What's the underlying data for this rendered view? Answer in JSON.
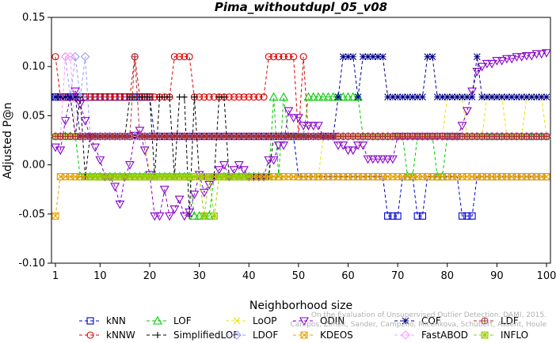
{
  "chart_data": {
    "type": "line",
    "title": "Pima_withoutdupl_05_v08",
    "xlabel": "Neighborhood size",
    "ylabel": "Adjusted P@n",
    "xlim": [
      1,
      100
    ],
    "ylim": [
      -0.1,
      0.15
    ],
    "x_ticks": [
      "1",
      "10",
      "20",
      "30",
      "40",
      "50",
      "60",
      "70",
      "80",
      "90",
      "100"
    ],
    "y_ticks": [
      "-0.10",
      "-0.05",
      "0.00",
      "0.05",
      "0.10",
      "0.15"
    ],
    "grid": false,
    "legend_position": "bottom",
    "watermark": [
      "Campos, Zimek, Sander, Campello, Micenkova, Schubert, Assent, Houle",
      "On the Evaluation of Unsupervised Outlier Detection. DAMI, 2015."
    ],
    "series": [
      {
        "name": "kNN",
        "color": "#0000cc",
        "marker": "square",
        "points": [
          [
            1,
            0.069
          ],
          [
            10,
            0.069
          ],
          [
            20,
            0.069
          ],
          [
            21,
            0.029
          ],
          [
            30,
            0.029
          ],
          [
            40,
            0.029
          ],
          [
            49,
            0.029
          ],
          [
            50,
            -0.012
          ],
          [
            60,
            -0.012
          ],
          [
            67,
            -0.012
          ],
          [
            68,
            -0.052
          ],
          [
            70,
            -0.052
          ],
          [
            71,
            -0.012
          ],
          [
            73,
            -0.012
          ],
          [
            74,
            -0.052
          ],
          [
            75,
            -0.052
          ],
          [
            76,
            -0.012
          ],
          [
            82,
            -0.012
          ],
          [
            83,
            -0.052
          ],
          [
            85,
            -0.052
          ],
          [
            86,
            -0.012
          ],
          [
            100,
            -0.012
          ]
        ]
      },
      {
        "name": "kNNW",
        "color": "#dd0000",
        "marker": "circle",
        "points": [
          [
            1,
            0.11
          ],
          [
            2,
            0.069
          ],
          [
            10,
            0.069
          ],
          [
            16,
            0.069
          ],
          [
            17,
            0.11
          ],
          [
            18,
            0.069
          ],
          [
            24,
            0.069
          ],
          [
            25,
            0.11
          ],
          [
            28,
            0.11
          ],
          [
            29,
            0.069
          ],
          [
            43,
            0.069
          ],
          [
            44,
            0.11
          ],
          [
            49,
            0.11
          ],
          [
            50,
            0.029
          ],
          [
            51,
            0.11
          ],
          [
            52,
            0.029
          ],
          [
            60,
            0.029
          ],
          [
            70,
            0.029
          ],
          [
            80,
            0.029
          ],
          [
            90,
            0.029
          ],
          [
            100,
            0.029
          ]
        ]
      },
      {
        "name": "LOF",
        "color": "#00cc00",
        "marker": "triangle-up",
        "points": [
          [
            1,
            0.029
          ],
          [
            5,
            0.029
          ],
          [
            6,
            -0.012
          ],
          [
            10,
            -0.012
          ],
          [
            20,
            -0.012
          ],
          [
            28,
            -0.012
          ],
          [
            29,
            -0.052
          ],
          [
            32,
            -0.052
          ],
          [
            33,
            -0.012
          ],
          [
            44,
            -0.012
          ],
          [
            45,
            0.069
          ],
          [
            46,
            -0.012
          ],
          [
            47,
            0.069
          ],
          [
            48,
            0.029
          ],
          [
            52,
            0.069
          ],
          [
            62,
            0.069
          ],
          [
            63,
            0.029
          ],
          [
            70,
            0.029
          ],
          [
            72,
            -0.012
          ],
          [
            74,
            0.029
          ],
          [
            78,
            -0.012
          ],
          [
            80,
            0.029
          ],
          [
            100,
            0.029
          ]
        ]
      },
      {
        "name": "SimplifiedLOF",
        "color": "#000000",
        "marker": "plus",
        "points": [
          [
            4,
            0.069
          ],
          [
            5,
            0.029
          ],
          [
            6,
            0.069
          ],
          [
            7,
            -0.012
          ],
          [
            8,
            0.029
          ],
          [
            15,
            0.029
          ],
          [
            16,
            0.069
          ],
          [
            20,
            0.069
          ],
          [
            21,
            -0.012
          ],
          [
            22,
            0.069
          ],
          [
            25,
            -0.012
          ],
          [
            26,
            0.069
          ],
          [
            28,
            -0.052
          ],
          [
            29,
            0.069
          ],
          [
            30,
            -0.012
          ],
          [
            34,
            0.069
          ],
          [
            36,
            -0.012
          ],
          [
            40,
            -0.012
          ],
          [
            45,
            0.029
          ],
          [
            52,
            0.029
          ],
          [
            70,
            0.029
          ],
          [
            100,
            0.029
          ]
        ]
      },
      {
        "name": "LoOP",
        "color": "#e6e600",
        "marker": "x",
        "points": [
          [
            1,
            0.029
          ],
          [
            10,
            0.029
          ],
          [
            20,
            -0.012
          ],
          [
            30,
            -0.012
          ],
          [
            40,
            -0.012
          ],
          [
            50,
            -0.012
          ],
          [
            55,
            0.029
          ],
          [
            70,
            0.029
          ],
          [
            80,
            0.069
          ],
          [
            84,
            0.029
          ],
          [
            88,
            0.069
          ],
          [
            92,
            0.029
          ],
          [
            96,
            0.069
          ],
          [
            100,
            0.029
          ]
        ]
      },
      {
        "name": "LDOF",
        "color": "#9999ff",
        "marker": "diamond",
        "points": [
          [
            3,
            0.11
          ],
          [
            4,
            0.069
          ],
          [
            5,
            0.11
          ],
          [
            6,
            0.069
          ],
          [
            7,
            0.11
          ],
          [
            8,
            0.029
          ],
          [
            10,
            0.029
          ],
          [
            20,
            0.029
          ],
          [
            40,
            0.029
          ],
          [
            60,
            0.029
          ],
          [
            80,
            0.029
          ],
          [
            100,
            0.029
          ]
        ]
      },
      {
        "name": "ODIN",
        "color": "#8800cc",
        "marker": "triangle-down",
        "points": [
          [
            1,
            0.018
          ],
          [
            2,
            0.015
          ],
          [
            3,
            0.045
          ],
          [
            4,
            0.069
          ],
          [
            5,
            0.075
          ],
          [
            6,
            0.062
          ],
          [
            7,
            0.045
          ],
          [
            8,
            0.028
          ],
          [
            9,
            0.018
          ],
          [
            10,
            0.005
          ],
          [
            11,
            -0.012
          ],
          [
            12,
            -0.012
          ],
          [
            13,
            -0.022
          ],
          [
            14,
            -0.04
          ],
          [
            15,
            -0.012
          ],
          [
            16,
            0.0
          ],
          [
            17,
            0.03
          ],
          [
            18,
            0.035
          ],
          [
            19,
            0.015
          ],
          [
            20,
            -0.01
          ],
          [
            21,
            -0.052
          ],
          [
            22,
            -0.052
          ],
          [
            23,
            -0.025
          ],
          [
            24,
            -0.052
          ],
          [
            25,
            -0.045
          ],
          [
            26,
            -0.035
          ],
          [
            27,
            -0.052
          ],
          [
            28,
            -0.048
          ],
          [
            29,
            -0.03
          ],
          [
            30,
            -0.01
          ],
          [
            31,
            -0.028
          ],
          [
            32,
            -0.02
          ],
          [
            33,
            -0.012
          ],
          [
            34,
            -0.005
          ],
          [
            35,
            0.0
          ],
          [
            36,
            -0.012
          ],
          [
            37,
            -0.005
          ],
          [
            38,
            0.0
          ],
          [
            39,
            -0.005
          ],
          [
            40,
            -0.012
          ],
          [
            44,
            0.005
          ],
          [
            46,
            0.02
          ],
          [
            48,
            0.055
          ],
          [
            49,
            0.048
          ],
          [
            50,
            0.048
          ],
          [
            51,
            0.04
          ],
          [
            55,
            0.029
          ],
          [
            58,
            0.02
          ],
          [
            60,
            0.015
          ],
          [
            62,
            0.02
          ],
          [
            64,
            0.006
          ],
          [
            70,
            0.029
          ],
          [
            80,
            0.029
          ],
          [
            83,
            0.04
          ],
          [
            84,
            0.055
          ],
          [
            85,
            0.075
          ],
          [
            86,
            0.095
          ],
          [
            87,
            0.1
          ],
          [
            88,
            0.103
          ],
          [
            90,
            0.106
          ],
          [
            92,
            0.108
          ],
          [
            94,
            0.11
          ],
          [
            96,
            0.111
          ],
          [
            98,
            0.113
          ],
          [
            100,
            0.114
          ]
        ]
      },
      {
        "name": "KDEOS",
        "color": "#e6a000",
        "marker": "square-x",
        "points": [
          [
            1,
            -0.052
          ],
          [
            2,
            -0.012
          ],
          [
            10,
            -0.012
          ],
          [
            20,
            -0.012
          ],
          [
            30,
            -0.012
          ],
          [
            40,
            -0.012
          ],
          [
            50,
            -0.012
          ],
          [
            60,
            -0.012
          ],
          [
            70,
            -0.012
          ],
          [
            80,
            -0.012
          ],
          [
            90,
            -0.012
          ],
          [
            100,
            -0.012
          ]
        ]
      },
      {
        "name": "COF",
        "color": "#000088",
        "marker": "asterisk",
        "points": [
          [
            1,
            0.069
          ],
          [
            5,
            0.069
          ],
          [
            6,
            0.029
          ],
          [
            10,
            0.029
          ],
          [
            20,
            0.029
          ],
          [
            30,
            0.029
          ],
          [
            40,
            0.029
          ],
          [
            48,
            0.029
          ],
          [
            55,
            0.029
          ],
          [
            58,
            0.069
          ],
          [
            59,
            0.11
          ],
          [
            61,
            0.11
          ],
          [
            62,
            0.069
          ],
          [
            63,
            0.11
          ],
          [
            67,
            0.11
          ],
          [
            68,
            0.069
          ],
          [
            75,
            0.069
          ],
          [
            76,
            0.11
          ],
          [
            77,
            0.11
          ],
          [
            78,
            0.069
          ],
          [
            85,
            0.069
          ],
          [
            86,
            0.11
          ],
          [
            87,
            0.069
          ],
          [
            100,
            0.069
          ]
        ]
      },
      {
        "name": "FastABOD",
        "color": "#ff99ff",
        "marker": "diamond",
        "points": [
          [
            1,
            0.029
          ],
          [
            3,
            0.11
          ],
          [
            4,
            0.11
          ],
          [
            5,
            0.029
          ],
          [
            10,
            0.029
          ],
          [
            20,
            0.029
          ],
          [
            40,
            0.029
          ],
          [
            60,
            0.029
          ],
          [
            80,
            0.029
          ],
          [
            100,
            0.029
          ]
        ]
      },
      {
        "name": "LDF",
        "color": "#aa3333",
        "marker": "circle-plus",
        "points": [
          [
            1,
            0.029
          ],
          [
            10,
            0.029
          ],
          [
            16,
            0.029
          ],
          [
            17,
            0.11
          ],
          [
            18,
            0.029
          ],
          [
            30,
            0.029
          ],
          [
            40,
            0.029
          ],
          [
            60,
            0.029
          ],
          [
            80,
            0.029
          ],
          [
            100,
            0.029
          ]
        ]
      },
      {
        "name": "INFLO",
        "color": "#99cc00",
        "marker": "star-box",
        "points": [
          [
            8,
            -0.012
          ],
          [
            20,
            -0.012
          ],
          [
            27,
            -0.012
          ],
          [
            28,
            -0.012
          ],
          [
            29,
            -0.012
          ],
          [
            30,
            -0.012
          ],
          [
            31,
            -0.052
          ],
          [
            32,
            -0.012
          ],
          [
            33,
            -0.052
          ],
          [
            34,
            -0.012
          ],
          [
            40,
            -0.012
          ]
        ]
      }
    ]
  }
}
